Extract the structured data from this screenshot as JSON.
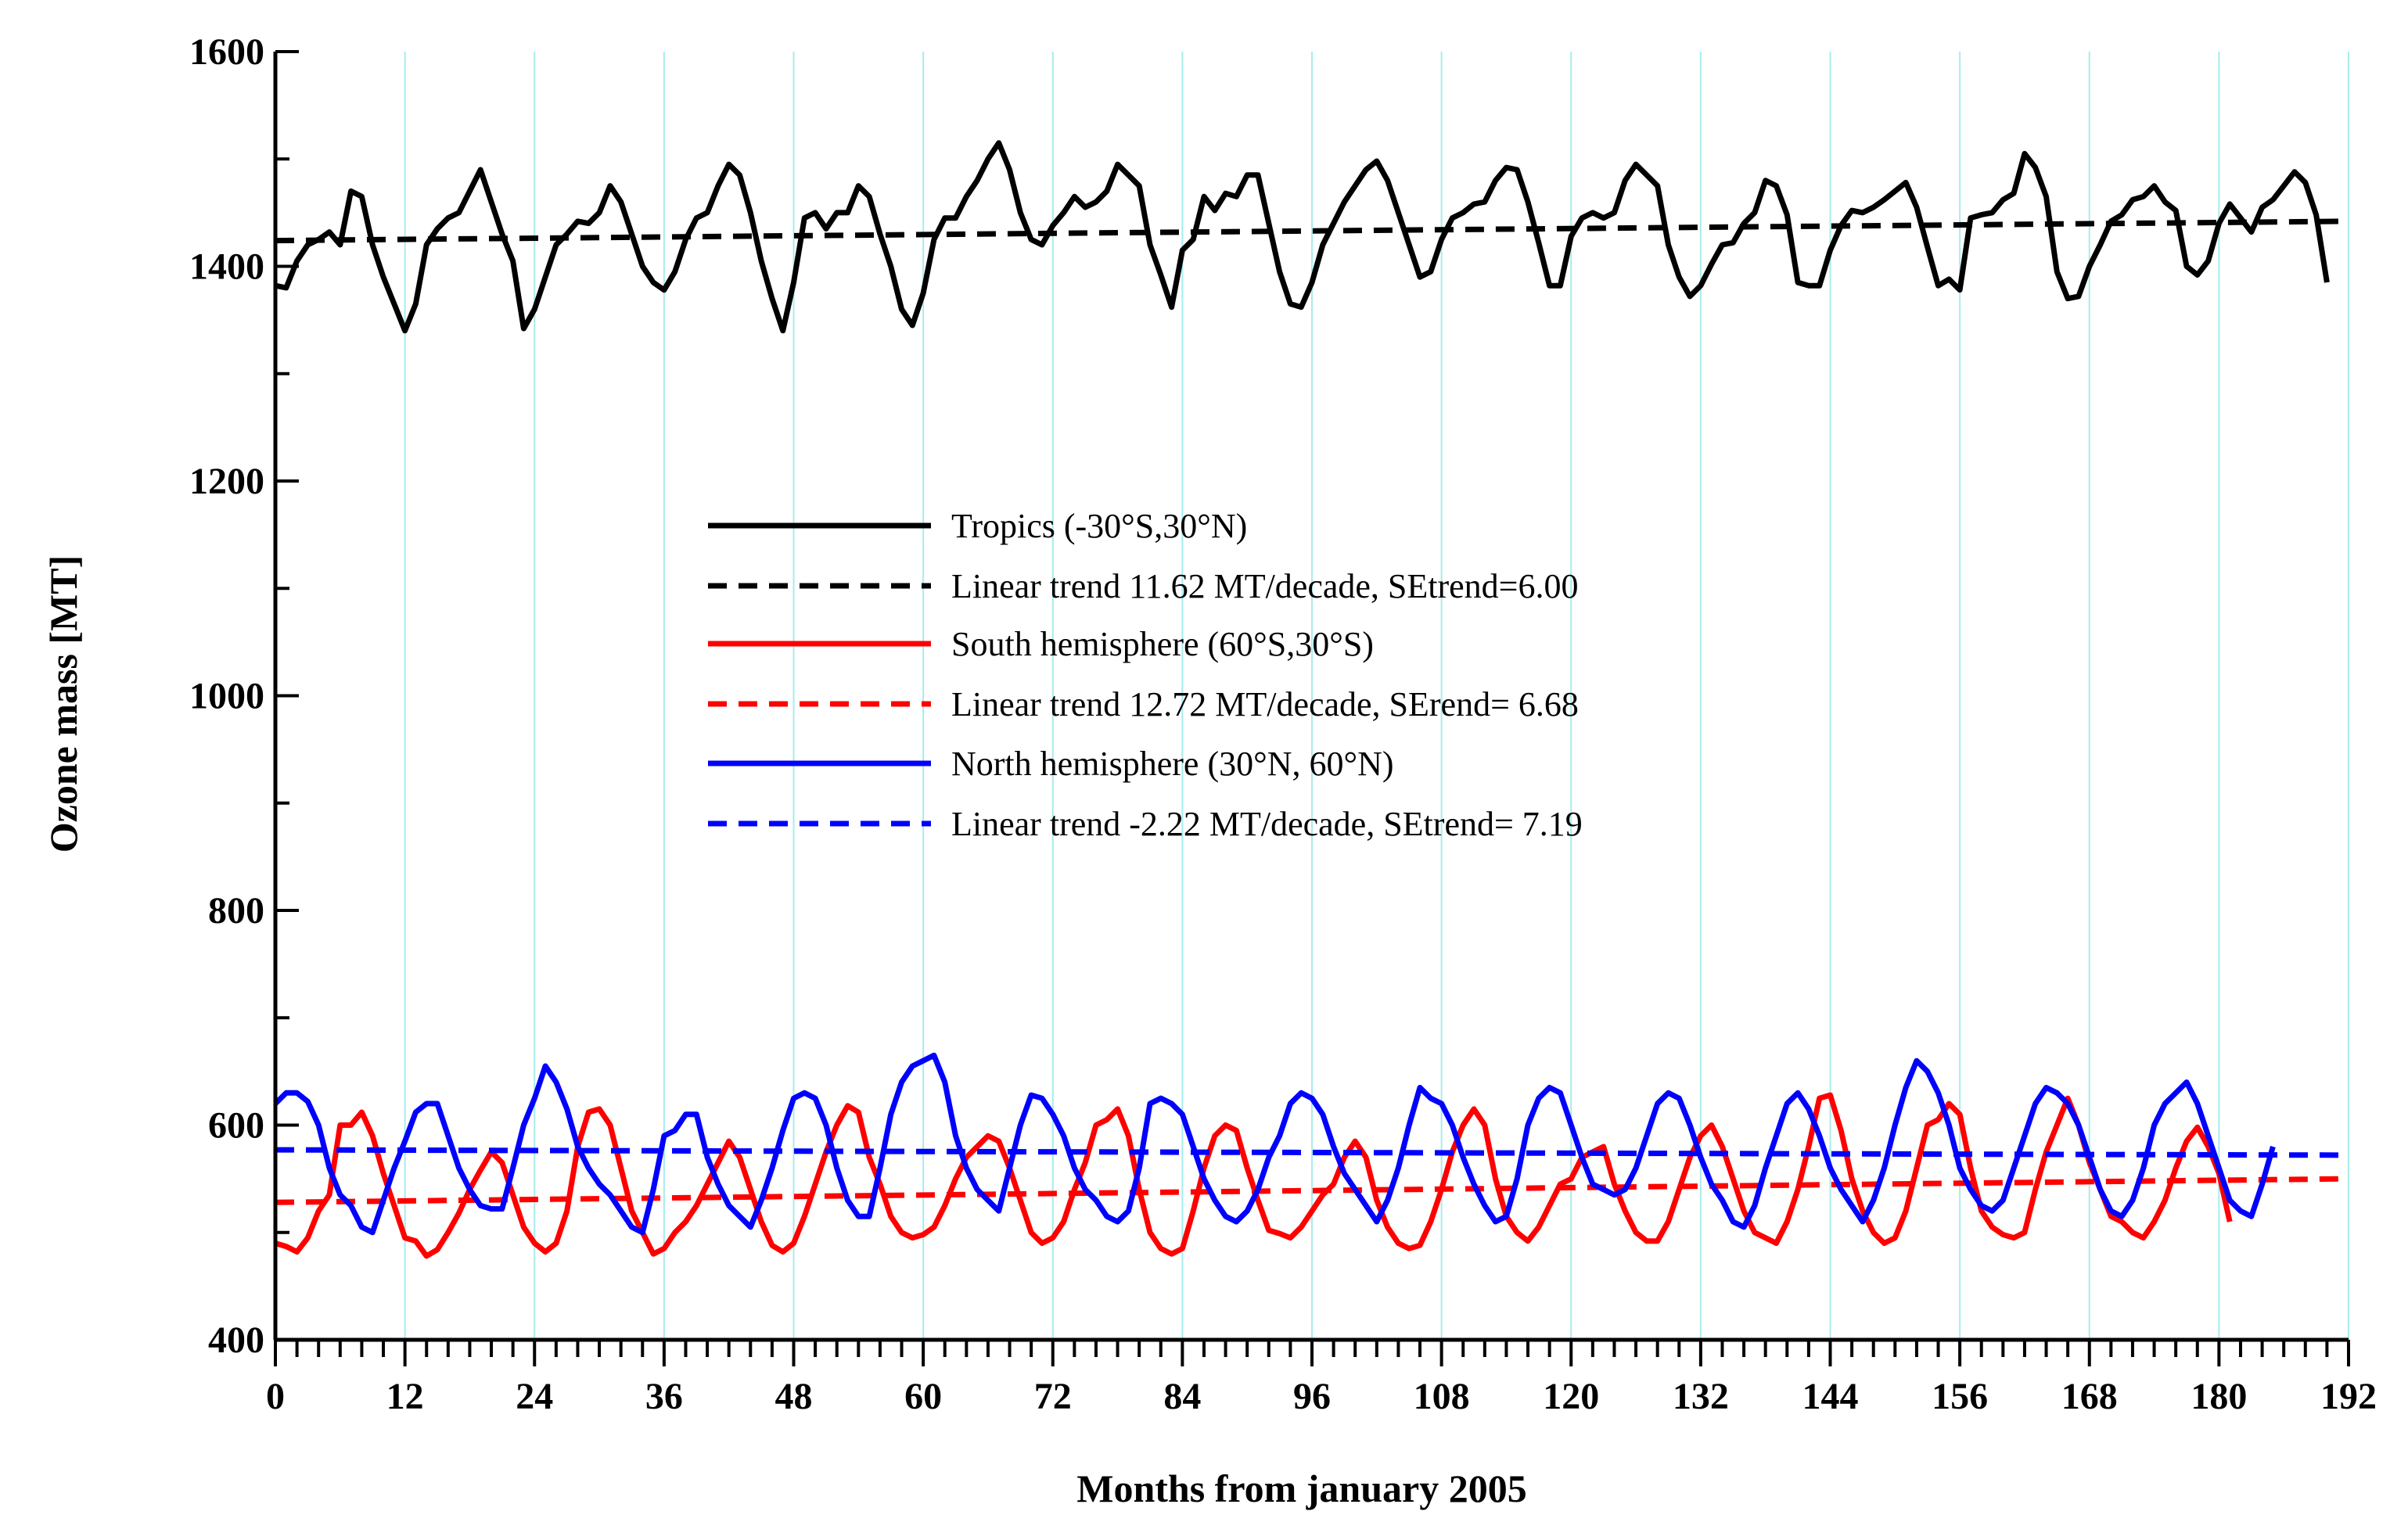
{
  "chart_data": {
    "type": "line",
    "title": "",
    "xlabel": "Months from january 2005",
    "ylabel": "Ozone mass [MT]",
    "xlim": [
      0,
      192
    ],
    "ylim": [
      400,
      1600
    ],
    "x_ticks": [
      0,
      12,
      24,
      36,
      48,
      60,
      72,
      84,
      96,
      108,
      120,
      132,
      144,
      156,
      168,
      180,
      192
    ],
    "y_ticks": [
      400,
      600,
      800,
      1000,
      1200,
      1400,
      1600
    ],
    "grid": "vertical cyan lines every 12 months",
    "legend_position": "center",
    "colors": {
      "tropics": "#000000",
      "south": "#ff0000",
      "north": "#0000ff",
      "grid": "#a8ecec"
    },
    "series": [
      {
        "name": "Tropics (-30°S,30°N)",
        "style": "solid",
        "color": "#000000",
        "x_start": 0,
        "x_step": 1,
        "values": [
          1382,
          1380,
          1405,
          1420,
          1425,
          1432,
          1420,
          1470,
          1465,
          1420,
          1390,
          1365,
          1340,
          1365,
          1420,
          1435,
          1445,
          1450,
          1470,
          1490,
          1460,
          1430,
          1405,
          1342,
          1360,
          1390,
          1420,
          1430,
          1442,
          1440,
          1450,
          1475,
          1460,
          1430,
          1400,
          1385,
          1378,
          1395,
          1425,
          1445,
          1450,
          1475,
          1495,
          1485,
          1450,
          1405,
          1370,
          1340,
          1385,
          1445,
          1450,
          1435,
          1450,
          1450,
          1475,
          1465,
          1430,
          1400,
          1360,
          1345,
          1375,
          1425,
          1445,
          1445,
          1465,
          1480,
          1500,
          1515,
          1490,
          1450,
          1425,
          1420,
          1438,
          1450,
          1465,
          1455,
          1460,
          1470,
          1495,
          1485,
          1475,
          1420,
          1392,
          1362,
          1415,
          1425,
          1465,
          1452,
          1468,
          1465,
          1485,
          1485,
          1440,
          1395,
          1365,
          1362,
          1385,
          1420,
          1440,
          1460,
          1475,
          1490,
          1498,
          1480,
          1450,
          1420,
          1390,
          1395,
          1425,
          1445,
          1450,
          1458,
          1460,
          1480,
          1492,
          1490,
          1460,
          1422,
          1382,
          1382,
          1428,
          1445,
          1450,
          1445,
          1450,
          1480,
          1495,
          1485,
          1475,
          1420,
          1390,
          1372,
          1382,
          1402,
          1420,
          1422,
          1440,
          1450,
          1480,
          1475,
          1448,
          1385,
          1382,
          1382,
          1415,
          1438,
          1452,
          1450,
          1455,
          1462,
          1470,
          1478,
          1455,
          1418,
          1382,
          1388,
          1378,
          1445,
          1448,
          1450,
          1462,
          1468,
          1505,
          1492,
          1465,
          1395,
          1370,
          1372,
          1400,
          1420,
          1442,
          1448,
          1462,
          1465,
          1475,
          1460,
          1452,
          1400,
          1392,
          1405,
          1440,
          1458,
          1445,
          1432,
          1455,
          1462,
          1475,
          1488,
          1478,
          1448,
          1385
        ]
      },
      {
        "name": "Linear trend 11.62 MT/decade, SEtrend=6.00",
        "style": "dashed",
        "color": "#000000",
        "x": [
          0,
          192
        ],
        "values": [
          1424,
          1442
        ]
      },
      {
        "name": "South hemisphere (60°S,30°S)",
        "style": "solid",
        "color": "#ff0000",
        "x_start": 0,
        "x_step": 1,
        "values": [
          490,
          487,
          482,
          495,
          520,
          535,
          600,
          600,
          612,
          590,
          555,
          525,
          495,
          492,
          478,
          484,
          500,
          518,
          540,
          558,
          575,
          565,
          535,
          505,
          490,
          482,
          490,
          520,
          580,
          612,
          615,
          600,
          560,
          520,
          500,
          480,
          485,
          500,
          510,
          525,
          545,
          565,
          585,
          570,
          540,
          510,
          488,
          482,
          490,
          515,
          545,
          575,
          600,
          618,
          612,
          570,
          545,
          515,
          500,
          495,
          498,
          505,
          525,
          550,
          570,
          580,
          590,
          585,
          560,
          530,
          500,
          490,
          495,
          510,
          540,
          565,
          600,
          605,
          615,
          590,
          540,
          500,
          485,
          480,
          485,
          520,
          560,
          590,
          600,
          595,
          560,
          530,
          502,
          499,
          495,
          505,
          520,
          535,
          545,
          570,
          585,
          570,
          530,
          505,
          490,
          485,
          488,
          510,
          540,
          575,
          600,
          615,
          600,
          550,
          515,
          500,
          492,
          505,
          525,
          545,
          550,
          570,
          575,
          580,
          545,
          520,
          500,
          492,
          492,
          510,
          540,
          570,
          590,
          600,
          580,
          550,
          520,
          500,
          495,
          490,
          510,
          540,
          580,
          625,
          628,
          595,
          550,
          520,
          500,
          490,
          495,
          520,
          560,
          600,
          605,
          620,
          610,
          560,
          520,
          505,
          498,
          495,
          500,
          540,
          575,
          600,
          625,
          600,
          565,
          540,
          515,
          510,
          500,
          495,
          510,
          530,
          560,
          585,
          598,
          580,
          555,
          510
        ]
      },
      {
        "name": "Linear trend 12.72 MT/decade, SErend= 6.68",
        "style": "dashed",
        "color": "#ff0000",
        "x": [
          0,
          192
        ],
        "values": [
          528,
          550
        ]
      },
      {
        "name": "North hemisphere (30°N, 60°N)",
        "style": "solid",
        "color": "#0000ff",
        "x_start": 0,
        "x_step": 1,
        "values": [
          620,
          630,
          630,
          622,
          600,
          560,
          535,
          525,
          505,
          500,
          530,
          560,
          585,
          612,
          620,
          620,
          590,
          560,
          540,
          525,
          522,
          522,
          560,
          600,
          625,
          655,
          640,
          615,
          580,
          560,
          545,
          535,
          520,
          505,
          500,
          540,
          590,
          595,
          610,
          610,
          570,
          545,
          525,
          515,
          505,
          530,
          560,
          595,
          625,
          630,
          625,
          600,
          560,
          530,
          515,
          515,
          560,
          610,
          640,
          655,
          660,
          665,
          640,
          590,
          560,
          540,
          530,
          520,
          560,
          600,
          628,
          625,
          610,
          590,
          560,
          540,
          530,
          515,
          510,
          520,
          560,
          620,
          625,
          620,
          610,
          580,
          550,
          530,
          515,
          510,
          520,
          540,
          570,
          590,
          620,
          630,
          625,
          610,
          580,
          555,
          540,
          525,
          510,
          530,
          560,
          600,
          635,
          625,
          620,
          600,
          570,
          545,
          525,
          510,
          515,
          550,
          600,
          625,
          635,
          630,
          600,
          570,
          545,
          540,
          535,
          540,
          560,
          590,
          620,
          630,
          625,
          600,
          570,
          545,
          530,
          510,
          505,
          525,
          560,
          590,
          620,
          630,
          615,
          590,
          560,
          540,
          525,
          510,
          530,
          560,
          600,
          635,
          660,
          650,
          630,
          600,
          560,
          540,
          525,
          520,
          530,
          560,
          590,
          620,
          635,
          630,
          620,
          600,
          570,
          540,
          520,
          515,
          530,
          560,
          600,
          620,
          630,
          640,
          620,
          590,
          560,
          530,
          520,
          515,
          545,
          580
        ]
      },
      {
        "name": "Linear trend -2.22 MT/decade, SEtrend= 7.19",
        "style": "dashed",
        "color": "#0000ff",
        "x": [
          0,
          192
        ],
        "values": [
          577,
          572
        ]
      }
    ]
  }
}
